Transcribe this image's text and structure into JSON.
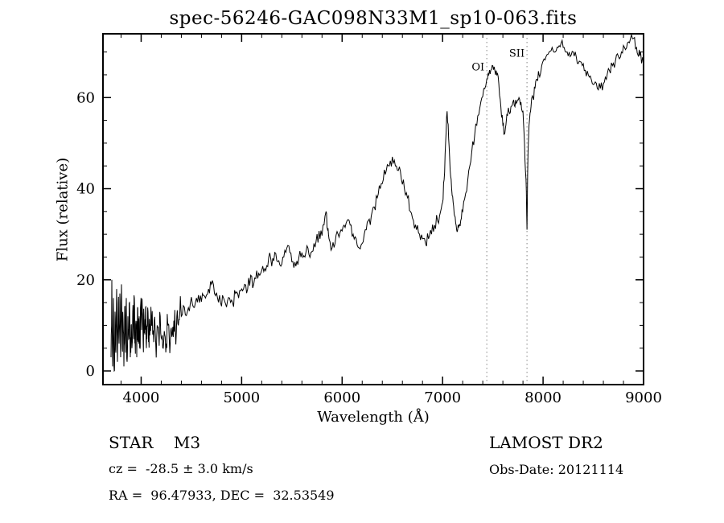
{
  "title": "spec-56246-GAC098N33M1_sp10-063.fits",
  "footer": {
    "object_class": "STAR    M3",
    "cz": "cz =  -28.5 ± 3.0 km/s",
    "radec": "RA =  96.47933, DEC =  32.53549",
    "survey": "LAMOST DR2",
    "obs_date": "Obs-Date: 20121114"
  },
  "chart_data": {
    "type": "line",
    "title": "spec-56246-GAC098N33M1_sp10-063.fits",
    "xlabel": "Wavelength (Å)",
    "ylabel": "Flux (relative)",
    "x_range": [
      3620,
      9000
    ],
    "y_range": [
      -3,
      74
    ],
    "grid": false,
    "legend": "none",
    "line_color": "#000000",
    "annotation_color": "#999999",
    "x_ticks": {
      "major": [
        4000,
        5000,
        6000,
        7000,
        8000,
        9000
      ],
      "minor_step": 200
    },
    "y_ticks": {
      "major": [
        0,
        20,
        40,
        60
      ],
      "minor_step": 5
    },
    "annotations": [
      {
        "label": "OI",
        "x": 7440,
        "label_y": 66
      },
      {
        "label": "SII",
        "x": 7840,
        "label_y": 69
      }
    ],
    "noise_regions": [
      {
        "x_min": 3620,
        "x_max": 4400,
        "amp": 4.5
      },
      {
        "x_min": 4400,
        "x_max": 7000,
        "amp": 1.6
      },
      {
        "x_min": 7000,
        "x_max": 9000,
        "amp": 1.2
      }
    ],
    "series": [
      {
        "name": "spectrum",
        "points": [
          [
            3700,
            3
          ],
          [
            3708,
            20
          ],
          [
            3716,
            1
          ],
          [
            3724,
            16
          ],
          [
            3732,
            0
          ],
          [
            3740,
            13
          ],
          [
            3748,
            4
          ],
          [
            3756,
            18
          ],
          [
            3764,
            2
          ],
          [
            3772,
            15
          ],
          [
            3780,
            6
          ],
          [
            3788,
            17
          ],
          [
            3796,
            3
          ],
          [
            3804,
            19
          ],
          [
            3812,
            5
          ],
          [
            3820,
            11
          ],
          [
            3828,
            1
          ],
          [
            3836,
            14
          ],
          [
            3844,
            4
          ],
          [
            3852,
            16
          ],
          [
            3860,
            2
          ],
          [
            3868,
            12
          ],
          [
            3876,
            7
          ],
          [
            3884,
            15
          ],
          [
            3892,
            3
          ],
          [
            3900,
            10
          ],
          [
            3908,
            5
          ],
          [
            3916,
            13
          ],
          [
            3924,
            8
          ],
          [
            3932,
            16
          ],
          [
            3940,
            6
          ],
          [
            3948,
            11
          ],
          [
            3956,
            3
          ],
          [
            3964,
            14
          ],
          [
            3972,
            7
          ],
          [
            3980,
            12
          ],
          [
            3988,
            5
          ],
          [
            3996,
            15
          ],
          [
            4004,
            9
          ],
          [
            4012,
            13
          ],
          [
            4020,
            6
          ],
          [
            4028,
            12
          ],
          [
            4036,
            8
          ],
          [
            4044,
            14
          ],
          [
            4052,
            5
          ],
          [
            4060,
            10
          ],
          [
            4068,
            13
          ],
          [
            4076,
            7
          ],
          [
            4084,
            11
          ],
          [
            4092,
            9
          ],
          [
            4100,
            12
          ],
          [
            4115,
            8
          ],
          [
            4130,
            11
          ],
          [
            4145,
            6
          ],
          [
            4160,
            10
          ],
          [
            4175,
            8
          ],
          [
            4190,
            12
          ],
          [
            4205,
            7
          ],
          [
            4220,
            5
          ],
          [
            4235,
            8
          ],
          [
            4250,
            6
          ],
          [
            4265,
            10
          ],
          [
            4280,
            7
          ],
          [
            4295,
            9
          ],
          [
            4310,
            8
          ],
          [
            4325,
            11
          ],
          [
            4340,
            9
          ],
          [
            4355,
            12
          ],
          [
            4370,
            10
          ],
          [
            4385,
            13
          ],
          [
            4400,
            12
          ],
          [
            4430,
            14
          ],
          [
            4460,
            13
          ],
          [
            4490,
            15
          ],
          [
            4520,
            14
          ],
          [
            4550,
            16
          ],
          [
            4580,
            15
          ],
          [
            4610,
            17
          ],
          [
            4640,
            16
          ],
          [
            4670,
            18
          ],
          [
            4700,
            19
          ],
          [
            4730,
            17
          ],
          [
            4760,
            16
          ],
          [
            4790,
            15
          ],
          [
            4820,
            16
          ],
          [
            4850,
            14
          ],
          [
            4880,
            16
          ],
          [
            4910,
            15
          ],
          [
            4940,
            17
          ],
          [
            4970,
            16
          ],
          [
            5000,
            18
          ],
          [
            5030,
            19
          ],
          [
            5060,
            18
          ],
          [
            5090,
            21
          ],
          [
            5120,
            19
          ],
          [
            5150,
            22
          ],
          [
            5180,
            21
          ],
          [
            5210,
            23
          ],
          [
            5240,
            22
          ],
          [
            5270,
            25
          ],
          [
            5300,
            23
          ],
          [
            5330,
            26
          ],
          [
            5360,
            24
          ],
          [
            5390,
            23
          ],
          [
            5420,
            25
          ],
          [
            5450,
            27
          ],
          [
            5480,
            26
          ],
          [
            5510,
            24
          ],
          [
            5540,
            23
          ],
          [
            5570,
            25
          ],
          [
            5600,
            26
          ],
          [
            5630,
            25
          ],
          [
            5660,
            27
          ],
          [
            5690,
            26
          ],
          [
            5720,
            28
          ],
          [
            5750,
            30
          ],
          [
            5780,
            29
          ],
          [
            5810,
            32
          ],
          [
            5840,
            35
          ],
          [
            5855,
            31
          ],
          [
            5870,
            29
          ],
          [
            5900,
            27
          ],
          [
            5930,
            28
          ],
          [
            5960,
            30
          ],
          [
            5990,
            31
          ],
          [
            6020,
            32
          ],
          [
            6050,
            33
          ],
          [
            6080,
            32
          ],
          [
            6110,
            30
          ],
          [
            6140,
            29
          ],
          [
            6170,
            27
          ],
          [
            6200,
            28
          ],
          [
            6230,
            31
          ],
          [
            6260,
            33
          ],
          [
            6290,
            34
          ],
          [
            6320,
            36
          ],
          [
            6350,
            38
          ],
          [
            6380,
            40
          ],
          [
            6410,
            42
          ],
          [
            6440,
            44
          ],
          [
            6470,
            45
          ],
          [
            6500,
            47
          ],
          [
            6530,
            45
          ],
          [
            6560,
            44
          ],
          [
            6590,
            42
          ],
          [
            6620,
            40
          ],
          [
            6650,
            38
          ],
          [
            6680,
            35
          ],
          [
            6710,
            33
          ],
          [
            6740,
            31
          ],
          [
            6770,
            30
          ],
          [
            6800,
            29
          ],
          [
            6830,
            28
          ],
          [
            6860,
            29
          ],
          [
            6890,
            30
          ],
          [
            6920,
            32
          ],
          [
            6950,
            33
          ],
          [
            6980,
            35
          ],
          [
            7000,
            37
          ],
          [
            7015,
            42
          ],
          [
            7030,
            50
          ],
          [
            7045,
            57
          ],
          [
            7060,
            51
          ],
          [
            7075,
            44
          ],
          [
            7090,
            40
          ],
          [
            7105,
            37
          ],
          [
            7120,
            34
          ],
          [
            7135,
            32
          ],
          [
            7150,
            31
          ],
          [
            7165,
            32
          ],
          [
            7180,
            33
          ],
          [
            7200,
            35
          ],
          [
            7230,
            39
          ],
          [
            7260,
            44
          ],
          [
            7290,
            48
          ],
          [
            7320,
            52
          ],
          [
            7350,
            56
          ],
          [
            7380,
            59
          ],
          [
            7410,
            62
          ],
          [
            7440,
            64
          ],
          [
            7460,
            65
          ],
          [
            7480,
            66
          ],
          [
            7500,
            67
          ],
          [
            7520,
            66
          ],
          [
            7540,
            65
          ],
          [
            7560,
            63
          ],
          [
            7580,
            58
          ],
          [
            7600,
            54
          ],
          [
            7615,
            52
          ],
          [
            7630,
            54
          ],
          [
            7645,
            56
          ],
          [
            7660,
            57
          ],
          [
            7680,
            58
          ],
          [
            7700,
            59
          ],
          [
            7720,
            58
          ],
          [
            7740,
            59
          ],
          [
            7760,
            60
          ],
          [
            7780,
            59
          ],
          [
            7800,
            57
          ],
          [
            7815,
            50
          ],
          [
            7830,
            42
          ],
          [
            7840,
            31
          ],
          [
            7850,
            48
          ],
          [
            7865,
            55
          ],
          [
            7880,
            58
          ],
          [
            7900,
            60
          ],
          [
            7920,
            62
          ],
          [
            7940,
            64
          ],
          [
            7960,
            65
          ],
          [
            7980,
            66
          ],
          [
            8000,
            68
          ],
          [
            8030,
            69
          ],
          [
            8060,
            70
          ],
          [
            8090,
            71
          ],
          [
            8120,
            70
          ],
          [
            8150,
            71
          ],
          [
            8180,
            72
          ],
          [
            8210,
            71
          ],
          [
            8240,
            70
          ],
          [
            8270,
            69
          ],
          [
            8300,
            70
          ],
          [
            8330,
            69
          ],
          [
            8360,
            68
          ],
          [
            8390,
            67
          ],
          [
            8420,
            66
          ],
          [
            8450,
            65
          ],
          [
            8480,
            64
          ],
          [
            8510,
            63
          ],
          [
            8540,
            62
          ],
          [
            8570,
            62
          ],
          [
            8600,
            63
          ],
          [
            8630,
            64
          ],
          [
            8660,
            66
          ],
          [
            8690,
            67
          ],
          [
            8720,
            68
          ],
          [
            8750,
            69
          ],
          [
            8780,
            70
          ],
          [
            8810,
            71
          ],
          [
            8840,
            72
          ],
          [
            8870,
            73
          ],
          [
            8900,
            73
          ],
          [
            8930,
            71
          ],
          [
            8950,
            69
          ],
          [
            8970,
            70
          ],
          [
            8985,
            68
          ],
          [
            9000,
            67
          ]
        ]
      }
    ]
  }
}
